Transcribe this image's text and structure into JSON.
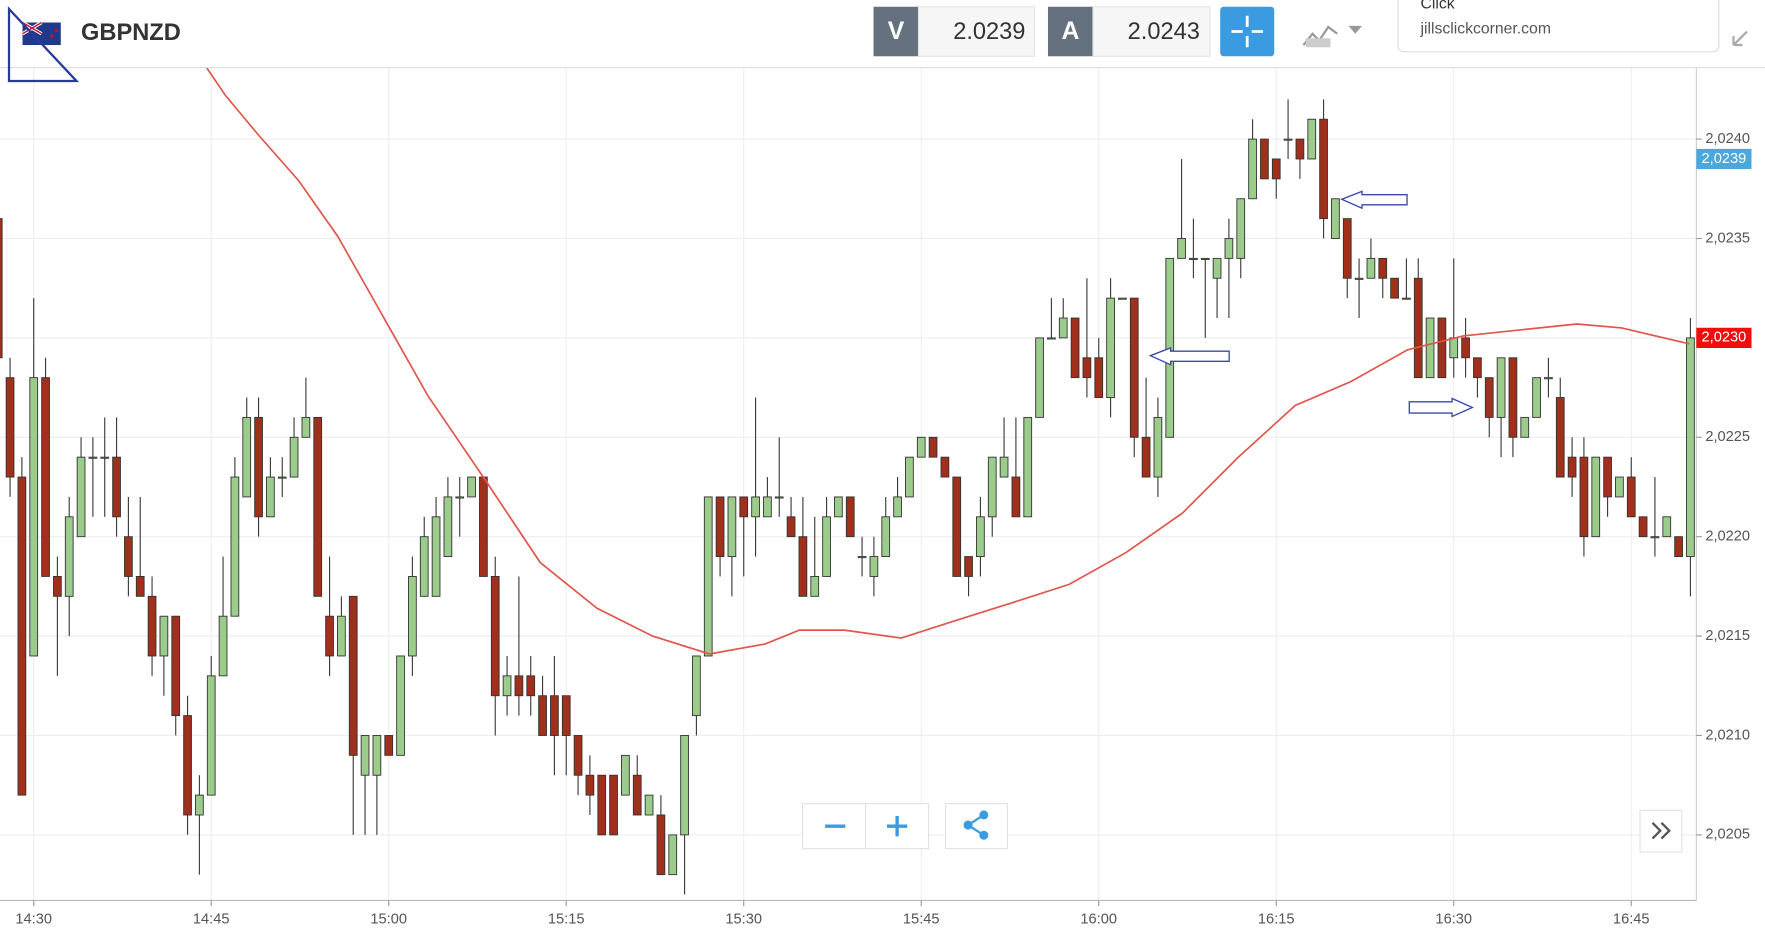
{
  "header": {
    "symbol": "GBPNZD",
    "sell_label": "V",
    "sell_price": "2.0239",
    "buy_label": "A",
    "buy_price": "2.0243",
    "popup_title": "Click",
    "popup_text": "jillsclickcorner.com"
  },
  "chart_data": {
    "type": "candlestick",
    "x": [
      867,
      868,
      869,
      870,
      871,
      872,
      873,
      874,
      875,
      876,
      877,
      878,
      879,
      880,
      881,
      882,
      883,
      884,
      885,
      886,
      887,
      888,
      889,
      890,
      891,
      892,
      893,
      894,
      895,
      896,
      897,
      898,
      899,
      900,
      901,
      902,
      903,
      904,
      905,
      906,
      907,
      908,
      909,
      910,
      911,
      912,
      913,
      914,
      915,
      916,
      917,
      918,
      919,
      920,
      921,
      922,
      923,
      924,
      925,
      926,
      927,
      928,
      929,
      930,
      931,
      932,
      933,
      934,
      935,
      936,
      937,
      938,
      939,
      940,
      941,
      942,
      943,
      944,
      945,
      946,
      947,
      948,
      949,
      950,
      951,
      952,
      953,
      954,
      955,
      956,
      957,
      958,
      959,
      960,
      961,
      962,
      963,
      964,
      965,
      966,
      967,
      968,
      969,
      970,
      971,
      972,
      973,
      974,
      975,
      976,
      977,
      978,
      979,
      980,
      981,
      982,
      983,
      984,
      985,
      986,
      987,
      988,
      989,
      990,
      991,
      992,
      993,
      994,
      995,
      996,
      997,
      998,
      999,
      1000,
      1001,
      1002,
      1003,
      1004,
      1005,
      1006,
      1007,
      1008,
      1009,
      1010
    ],
    "open": [
      2.0236,
      2.0228,
      2.0223,
      2.0214,
      2.0228,
      2.0218,
      2.0217,
      2.022,
      2.0224,
      2.0224,
      2.0224,
      2.022,
      2.0218,
      2.0217,
      2.0214,
      2.0216,
      2.0211,
      2.0206,
      2.0207,
      2.0213,
      2.0216,
      2.0222,
      2.0226,
      2.0221,
      2.0223,
      2.0223,
      2.0225,
      2.0226,
      2.0216,
      2.0214,
      2.0217,
      2.0208,
      2.0208,
      2.021,
      2.0209,
      2.0214,
      2.0217,
      2.0217,
      2.0219,
      2.0222,
      2.0222,
      2.0223,
      2.0218,
      2.0212,
      2.0213,
      2.0213,
      2.0212,
      2.0212,
      2.0212,
      2.021,
      2.0208,
      2.0208,
      2.0208,
      2.0207,
      2.0208,
      2.0206,
      2.0206,
      2.0203,
      2.0205,
      2.0211,
      2.0214,
      2.0222,
      2.0219,
      2.0222,
      2.0221,
      2.0221,
      2.0222,
      2.0221,
      2.022,
      2.0217,
      2.0218,
      2.0221,
      2.0222,
      2.0219,
      2.0218,
      2.0219,
      2.0221,
      2.0222,
      2.0224,
      2.0225,
      2.0224,
      2.0223,
      2.0219,
      2.0219,
      2.0221,
      2.0223,
      2.0223,
      2.0221,
      2.0226,
      2.023,
      2.023,
      2.0231,
      2.0229,
      2.0229,
      2.0227,
      2.0232,
      2.0232,
      2.0225,
      2.0223,
      2.0225,
      2.0234,
      2.0234,
      2.0234,
      2.0233,
      2.0234,
      2.0234,
      2.0237,
      2.024,
      2.0239,
      2.024,
      2.024,
      2.0239,
      2.0241,
      2.0235,
      2.0236,
      2.0233,
      2.0233,
      2.0234,
      2.0233,
      2.0232,
      2.0233,
      2.0228,
      2.0231,
      2.0229,
      2.023,
      2.0229,
      2.0228,
      2.0226,
      2.0229,
      2.0225,
      2.0226,
      2.0228,
      2.0227,
      2.0224,
      2.0224,
      2.022,
      2.0224,
      2.0222,
      2.0223,
      2.0221,
      2.022,
      2.022,
      2.022,
      2.0219
    ],
    "high": [
      2.0238,
      2.0229,
      2.0224,
      2.0232,
      2.0229,
      2.0219,
      2.0222,
      2.0225,
      2.0225,
      2.0226,
      2.0226,
      2.0222,
      2.0222,
      2.0218,
      2.0216,
      2.0216,
      2.0212,
      2.0208,
      2.0214,
      2.0219,
      2.0224,
      2.0227,
      2.0227,
      2.0224,
      2.0224,
      2.0226,
      2.0228,
      2.0226,
      2.0219,
      2.0217,
      2.0217,
      2.021,
      2.021,
      2.021,
      2.0214,
      2.0219,
      2.0221,
      2.0222,
      2.0223,
      2.0223,
      2.0223,
      2.0223,
      2.0219,
      2.0214,
      2.0218,
      2.0214,
      2.0213,
      2.0214,
      2.0212,
      2.021,
      2.0209,
      2.0208,
      2.0208,
      2.0209,
      2.0209,
      2.0207,
      2.0207,
      2.0205,
      2.021,
      2.0214,
      2.0222,
      2.0222,
      2.0222,
      2.0222,
      2.0227,
      2.0223,
      2.0225,
      2.0222,
      2.0222,
      2.0221,
      2.0222,
      2.0222,
      2.0222,
      2.022,
      2.022,
      2.0222,
      2.0223,
      2.0224,
      2.0225,
      2.0225,
      2.0224,
      2.0223,
      2.0219,
      2.0222,
      2.0224,
      2.0226,
      2.0226,
      2.0226,
      2.023,
      2.0232,
      2.0232,
      2.0231,
      2.0233,
      2.023,
      2.0233,
      2.0232,
      2.0232,
      2.0228,
      2.0227,
      2.0234,
      2.0239,
      2.0236,
      2.0234,
      2.0234,
      2.0236,
      2.0237,
      2.0241,
      2.024,
      2.0239,
      2.0242,
      2.024,
      2.0241,
      2.0242,
      2.0237,
      2.0236,
      2.0234,
      2.0235,
      2.0234,
      2.0233,
      2.0234,
      2.0234,
      2.0231,
      2.0231,
      2.0234,
      2.0231,
      2.0229,
      2.0228,
      2.0229,
      2.0229,
      2.0226,
      2.0228,
      2.0229,
      2.0228,
      2.0225,
      2.0225,
      2.0224,
      2.0224,
      2.0223,
      2.0224,
      2.0221,
      2.0223,
      2.0221,
      2.022,
      2.0231
    ],
    "low": [
      2.0228,
      2.0222,
      2.0207,
      2.0214,
      2.0218,
      2.0213,
      2.0215,
      2.022,
      2.0221,
      2.0221,
      2.022,
      2.0217,
      2.0217,
      2.0213,
      2.0212,
      2.021,
      2.0205,
      2.0203,
      2.0207,
      2.0213,
      2.0216,
      2.0222,
      2.022,
      2.0221,
      2.0222,
      2.0223,
      2.0225,
      2.0217,
      2.0213,
      2.0214,
      2.0205,
      2.0205,
      2.0205,
      2.0209,
      2.0209,
      2.0213,
      2.0217,
      2.0217,
      2.0219,
      2.022,
      2.0222,
      2.0218,
      2.021,
      2.0211,
      2.0211,
      2.0211,
      2.021,
      2.0208,
      2.0208,
      2.0207,
      2.0206,
      2.0205,
      2.0205,
      2.0207,
      2.0206,
      2.0206,
      2.0203,
      2.0203,
      2.0202,
      2.021,
      2.0214,
      2.0218,
      2.0217,
      2.0218,
      2.0219,
      2.0221,
      2.0221,
      2.022,
      2.0217,
      2.0217,
      2.0218,
      2.0221,
      2.022,
      2.0218,
      2.0217,
      2.0219,
      2.0221,
      2.0222,
      2.0224,
      2.0224,
      2.0223,
      2.0218,
      2.0217,
      2.0218,
      2.022,
      2.0223,
      2.0221,
      2.0221,
      2.0226,
      2.023,
      2.023,
      2.0228,
      2.0227,
      2.0227,
      2.0226,
      2.0232,
      2.0224,
      2.0223,
      2.0222,
      2.0225,
      2.0234,
      2.0233,
      2.023,
      2.0231,
      2.0231,
      2.0233,
      2.0237,
      2.0238,
      2.0237,
      2.0239,
      2.0238,
      2.0239,
      2.0235,
      2.0235,
      2.0232,
      2.0231,
      2.0233,
      2.0232,
      2.0232,
      2.0232,
      2.0228,
      2.0228,
      2.0228,
      2.0228,
      2.0228,
      2.0227,
      2.0225,
      2.0224,
      2.0224,
      2.0225,
      2.0226,
      2.0227,
      2.0223,
      2.0222,
      2.0219,
      2.022,
      2.0221,
      2.0222,
      2.0221,
      2.022,
      2.0219,
      2.022,
      2.0219,
      2.0217
    ],
    "close": [
      2.0229,
      2.0223,
      2.0207,
      2.0228,
      2.0218,
      2.0217,
      2.0221,
      2.0224,
      2.0224,
      2.0224,
      2.0221,
      2.0218,
      2.0217,
      2.0214,
      2.0216,
      2.0211,
      2.0206,
      2.0207,
      2.0213,
      2.0216,
      2.0223,
      2.0226,
      2.0221,
      2.0223,
      2.0223,
      2.0225,
      2.0226,
      2.0217,
      2.0214,
      2.0216,
      2.0209,
      2.021,
      2.021,
      2.0209,
      2.0214,
      2.0218,
      2.022,
      2.0221,
      2.0222,
      2.0222,
      2.0223,
      2.0218,
      2.0212,
      2.0213,
      2.0212,
      2.0212,
      2.021,
      2.021,
      2.021,
      2.0208,
      2.0207,
      2.0205,
      2.0205,
      2.0209,
      2.0206,
      2.0207,
      2.0203,
      2.0205,
      2.021,
      2.0214,
      2.0222,
      2.0219,
      2.0222,
      2.0221,
      2.0222,
      2.0222,
      2.0222,
      2.022,
      2.0217,
      2.0218,
      2.0221,
      2.0222,
      2.022,
      2.0219,
      2.0219,
      2.0221,
      2.0222,
      2.0224,
      2.0225,
      2.0224,
      2.0223,
      2.0218,
      2.0218,
      2.0221,
      2.0224,
      2.0224,
      2.0221,
      2.0226,
      2.023,
      2.023,
      2.0231,
      2.0228,
      2.0228,
      2.0227,
      2.0232,
      2.0232,
      2.0225,
      2.0223,
      2.0226,
      2.0234,
      2.0235,
      2.0234,
      2.0234,
      2.0234,
      2.0235,
      2.0237,
      2.024,
      2.0238,
      2.0238,
      2.024,
      2.0239,
      2.0241,
      2.0236,
      2.0237,
      2.0233,
      2.0233,
      2.0234,
      2.0233,
      2.0232,
      2.0232,
      2.0228,
      2.0231,
      2.0228,
      2.023,
      2.0229,
      2.0228,
      2.0226,
      2.0229,
      2.0225,
      2.0226,
      2.0228,
      2.0228,
      2.0223,
      2.0223,
      2.022,
      2.0224,
      2.0222,
      2.0223,
      2.0221,
      2.022,
      2.022,
      2.0221,
      2.0219,
      2.023
    ],
    "up_color": "#9ccc8c",
    "down_color": "#a0301c",
    "wick_color": "#3a3a3a",
    "ma": {
      "x": [
        884.6,
        886.2,
        889.0,
        892.4,
        895.7,
        899.5,
        903.3,
        908.1,
        912.8,
        917.6,
        922.3,
        927.1,
        931.8,
        934.7,
        938.5,
        943.3,
        948.0,
        952.8,
        957.5,
        962.3,
        967.1,
        971.8,
        976.6,
        981.3,
        986.1,
        990.8,
        995.6,
        1000.4,
        1004.2,
        1009.9
      ],
      "values": [
        2.02436,
        2.02422,
        2.02402,
        2.02379,
        2.02351,
        2.02311,
        2.02271,
        2.02229,
        2.02187,
        2.02164,
        2.0215,
        2.02141,
        2.02146,
        2.02153,
        2.02153,
        2.02149,
        2.02158,
        2.02167,
        2.02176,
        2.02192,
        2.02212,
        2.0224,
        2.02266,
        2.02278,
        2.02294,
        2.02301,
        2.02304,
        2.02307,
        2.02305,
        2.02297
      ],
      "color": "#e0564b"
    },
    "price_labels": [
      {
        "value": 2.0239,
        "label": "2,0239",
        "color": "#4aa8dc"
      },
      {
        "value": 2.023,
        "label": "2,0230",
        "color": "#f20c0c"
      }
    ],
    "xlim": [
      867.15,
      1010.5
    ],
    "ylim": [
      2.02017,
      2.02436
    ],
    "xticks": [
      {
        "value": 870,
        "label": "14:30"
      },
      {
        "value": 885,
        "label": "14:45"
      },
      {
        "value": 900,
        "label": "15:00"
      },
      {
        "value": 915,
        "label": "15:15"
      },
      {
        "value": 930,
        "label": "15:30"
      },
      {
        "value": 945,
        "label": "15:45"
      },
      {
        "value": 960,
        "label": "16:00"
      },
      {
        "value": 975,
        "label": "16:15"
      },
      {
        "value": 990,
        "label": "16:30"
      },
      {
        "value": 1005,
        "label": "16:45"
      }
    ],
    "yticks": [
      {
        "value": 2.0205,
        "label": "2,0205"
      },
      {
        "value": 2.021,
        "label": "2,0210"
      },
      {
        "value": 2.0215,
        "label": "2,0215"
      },
      {
        "value": 2.022,
        "label": "2,0220"
      },
      {
        "value": 2.0225,
        "label": "2,0225"
      },
      {
        "value": 2.023,
        "label": "2,0230"
      },
      {
        "value": 2.0235,
        "label": "2,0235"
      },
      {
        "value": 2.024,
        "label": "2,0240"
      }
    ],
    "grid": true
  }
}
